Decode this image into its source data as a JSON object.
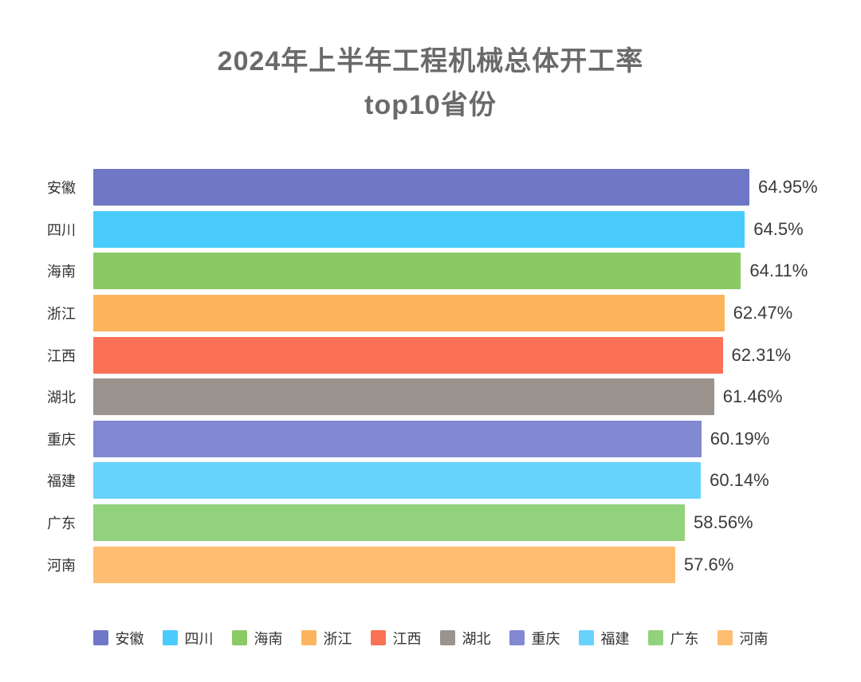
{
  "title": {
    "line1": "2024年上半年工程机械总体开工率",
    "line2": "top10省份"
  },
  "chart_data": {
    "type": "bar",
    "orientation": "horizontal",
    "title": "2024年上半年工程机械总体开工率 top10省份",
    "categories": [
      "安徽",
      "四川",
      "海南",
      "浙江",
      "江西",
      "湖北",
      "重庆",
      "福建",
      "广东",
      "河南"
    ],
    "values": [
      64.95,
      64.5,
      64.11,
      62.47,
      62.31,
      61.46,
      60.19,
      60.14,
      58.56,
      57.6
    ],
    "value_labels": [
      "64.95%",
      "64.5%",
      "64.11%",
      "62.47%",
      "62.31%",
      "61.46%",
      "60.19%",
      "60.14%",
      "58.56%",
      "57.6%"
    ],
    "bar_colors": [
      "#6F77C6",
      "#49CBFB",
      "#8BC964",
      "#FDB55D",
      "#FA7156",
      "#9B948E",
      "#8289D2",
      "#67D2FC",
      "#93D27C",
      "#FEBE71"
    ],
    "unit": "%",
    "xlabel": "",
    "ylabel": "",
    "grid": false,
    "legend_position": "bottom"
  },
  "legend": {
    "items": [
      {
        "label": "安徽",
        "color": "#6F77C6"
      },
      {
        "label": "四川",
        "color": "#49CBFB"
      },
      {
        "label": "海南",
        "color": "#8BC964"
      },
      {
        "label": "浙江",
        "color": "#FDB55D"
      },
      {
        "label": "江西",
        "color": "#FA7156"
      },
      {
        "label": "湖北",
        "color": "#9B948E"
      },
      {
        "label": "重庆",
        "color": "#8289D2"
      },
      {
        "label": "福建",
        "color": "#67D2FC"
      },
      {
        "label": "广东",
        "color": "#93D27C"
      },
      {
        "label": "河南",
        "color": "#FEBE71"
      }
    ]
  }
}
